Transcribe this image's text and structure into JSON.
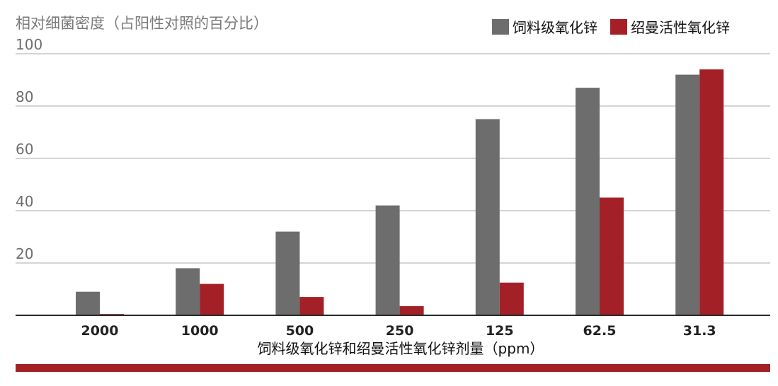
{
  "chart_data": {
    "type": "bar",
    "ylabel": "相对细菌密度（占阳性对照的百分比）",
    "xlabel": "饲料级氧化锌和绍曼活性氧化锌剂量（ppm）",
    "categories": [
      "2000",
      "1000",
      "500",
      "250",
      "125",
      "62.5",
      "31.3"
    ],
    "series": [
      {
        "name": "饲料级氧化锌",
        "color": "#6d6d6d",
        "values": [
          9,
          18,
          32,
          42,
          75,
          87,
          92
        ]
      },
      {
        "name": "绍曼活性氧化锌",
        "color": "#a32126",
        "values": [
          0.5,
          12,
          7,
          3.5,
          12.5,
          45,
          94
        ]
      }
    ],
    "ylim": [
      0,
      100
    ],
    "yticks": [
      "20",
      "40",
      "60",
      "80",
      "100"
    ],
    "legend_position": "top-right",
    "grid": true,
    "footer_bar_color": "#a32126"
  }
}
